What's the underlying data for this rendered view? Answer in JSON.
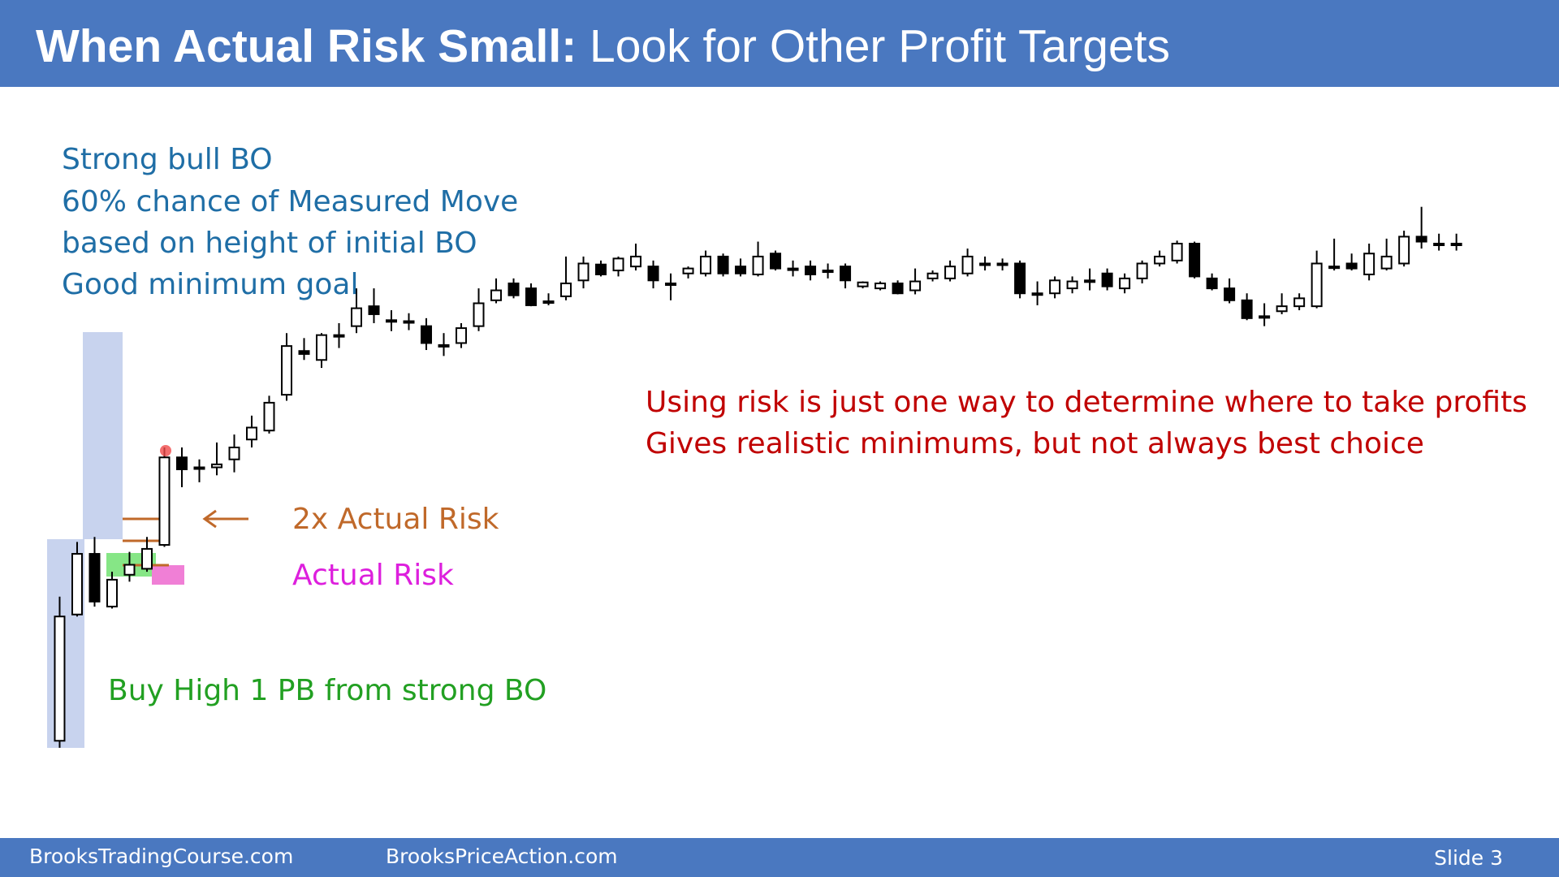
{
  "header": {
    "title_bold": "When Actual Risk Small:",
    "title_rest": "Look for Other Profit Targets"
  },
  "notes": {
    "setup": [
      "Strong bull BO",
      "60% chance of Measured Move",
      "based on height of initial BO",
      "Good minimum goal"
    ],
    "comment": [
      "Using risk is just one way to determine where to take profits",
      "Gives realistic minimums, but not always best choice"
    ],
    "double_risk": "2x Actual Risk",
    "actual_risk": "Actual Risk",
    "entry": "Buy High 1 PB from strong BO"
  },
  "footer": {
    "left": "BrooksTradingCourse.com",
    "middle": "BrooksPriceAction.com",
    "slide": "Slide 3"
  },
  "chart_data": {
    "type": "candlestick",
    "open": [
      55,
      182,
      243,
      190,
      222,
      228,
      252,
      340,
      330,
      330,
      338,
      358,
      367,
      403,
      447,
      438,
      463,
      472,
      492,
      478,
      477,
      472,
      453,
      455,
      472,
      498,
      515,
      510,
      497,
      502,
      518,
      534,
      528,
      532,
      532,
      515,
      525,
      525,
      542,
      532,
      524,
      545,
      530,
      532,
      528,
      532,
      512,
      510,
      515,
      508,
      520,
      520,
      525,
      535,
      535,
      535,
      505,
      505,
      510,
      518,
      525,
      510,
      520,
      535,
      538,
      555,
      520,
      510,
      498,
      482,
      487,
      492,
      492,
      532,
      535,
      524,
      530,
      535,
      562,
      555,
      555
    ],
    "high": [
      200,
      255,
      260,
      225,
      245,
      260,
      350,
      350,
      338,
      355,
      363,
      382,
      402,
      465,
      460,
      465,
      475,
      510,
      510,
      488,
      485,
      480,
      465,
      475,
      510,
      520,
      520,
      515,
      505,
      542,
      542,
      538,
      542,
      555,
      538,
      525,
      532,
      548,
      545,
      540,
      557,
      548,
      538,
      538,
      535,
      535,
      517,
      517,
      518,
      530,
      528,
      538,
      550,
      542,
      540,
      538,
      517,
      522,
      522,
      530,
      530,
      525,
      538,
      548,
      558,
      557,
      525,
      520,
      505,
      495,
      505,
      505,
      548,
      560,
      545,
      555,
      560,
      568,
      592,
      565,
      565
    ],
    "low": [
      48,
      180,
      190,
      188,
      215,
      225,
      250,
      310,
      315,
      322,
      325,
      350,
      364,
      397,
      438,
      430,
      450,
      465,
      475,
      467,
      468,
      448,
      442,
      450,
      467,
      495,
      500,
      492,
      493,
      498,
      510,
      522,
      522,
      528,
      510,
      498,
      520,
      522,
      522,
      522,
      522,
      528,
      522,
      518,
      520,
      510,
      510,
      508,
      504,
      504,
      517,
      517,
      522,
      528,
      528,
      500,
      493,
      500,
      505,
      508,
      508,
      505,
      515,
      532,
      535,
      520,
      508,
      495,
      478,
      472,
      484,
      488,
      490,
      528,
      528,
      518,
      528,
      532,
      550,
      548,
      548
    ],
    "close": [
      180,
      243,
      195,
      217,
      232,
      248,
      340,
      328,
      330,
      333,
      350,
      370,
      395,
      452,
      444,
      463,
      463,
      490,
      484,
      478,
      477,
      455,
      453,
      470,
      495,
      508,
      503,
      493,
      497,
      515,
      535,
      524,
      540,
      542,
      518,
      515,
      530,
      542,
      525,
      525,
      542,
      530,
      530,
      524,
      528,
      518,
      516,
      515,
      505,
      517,
      525,
      532,
      542,
      535,
      535,
      505,
      505,
      518,
      517,
      518,
      512,
      520,
      535,
      542,
      555,
      522,
      510,
      498,
      480,
      482,
      492,
      500,
      535,
      532,
      530,
      545,
      542,
      562,
      557,
      555,
      555
    ],
    "up_color": "#ffffff",
    "down_color": "#000000",
    "wick_color": "#000000"
  }
}
